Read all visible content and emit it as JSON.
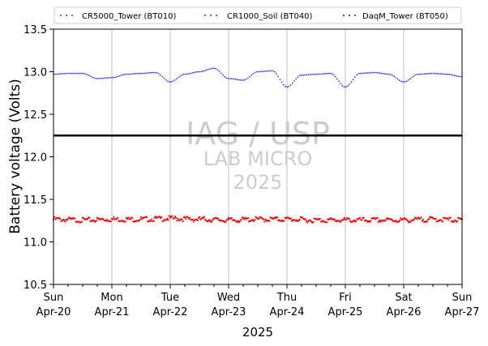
{
  "chart_data": {
    "type": "scatter",
    "title": "",
    "xlabel": "2025",
    "ylabel": "Battery voltage (Volts)",
    "x_ticks": [
      {
        "day": "Sun",
        "date": "Apr-20"
      },
      {
        "day": "Mon",
        "date": "Apr-21"
      },
      {
        "day": "Tue",
        "date": "Apr-22"
      },
      {
        "day": "Wed",
        "date": "Apr-23"
      },
      {
        "day": "Thu",
        "date": "Apr-24"
      },
      {
        "day": "Fri",
        "date": "Apr-25"
      },
      {
        "day": "Sat",
        "date": "Apr-26"
      },
      {
        "day": "Sun",
        "date": "Apr-27"
      }
    ],
    "xlim": [
      "2025-04-20",
      "2025-04-27"
    ],
    "ylim": [
      10.5,
      13.5
    ],
    "y_ticks": [
      "10.5",
      "11.0",
      "11.5",
      "12.0",
      "12.5",
      "13.0",
      "13.5"
    ],
    "grid": "vertical lines at day ticks",
    "legend_position": "top, above plot",
    "reference_line": {
      "y": 12.25,
      "color": "#000000"
    },
    "watermark": {
      "line1": "IAG / USP",
      "line2": "LAB MICRO",
      "line3": "2025"
    },
    "series": [
      {
        "name": "CR5000_Tower (BT010)",
        "color": "#3333ff",
        "marker": "dot",
        "x": [
          "2025-04-20T00:00",
          "2025-04-20T06:00",
          "2025-04-20T12:00",
          "2025-04-20T18:00",
          "2025-04-21T00:00",
          "2025-04-21T06:00",
          "2025-04-21T12:00",
          "2025-04-21T18:00",
          "2025-04-22T00:00",
          "2025-04-22T06:00",
          "2025-04-22T12:00",
          "2025-04-22T18:00",
          "2025-04-23T00:00",
          "2025-04-23T06:00",
          "2025-04-23T12:00",
          "2025-04-23T18:00",
          "2025-04-24T00:00",
          "2025-04-24T06:00",
          "2025-04-24T12:00",
          "2025-04-24T18:00",
          "2025-04-25T00:00",
          "2025-04-25T06:00",
          "2025-04-25T12:00",
          "2025-04-25T18:00",
          "2025-04-26T00:00",
          "2025-04-26T06:00",
          "2025-04-26T12:00",
          "2025-04-26T18:00",
          "2025-04-27T00:00"
        ],
        "y": [
          12.97,
          12.98,
          12.98,
          12.92,
          12.93,
          12.97,
          12.98,
          12.99,
          12.88,
          12.97,
          13.0,
          13.04,
          12.92,
          12.9,
          13.0,
          13.01,
          12.82,
          12.96,
          12.97,
          12.98,
          12.82,
          12.98,
          12.99,
          12.97,
          12.88,
          12.97,
          12.98,
          12.97,
          12.94
        ]
      },
      {
        "name": "CR1000_Soil (BT040)",
        "color": "#ff0000",
        "marker": "dot",
        "x": [
          "2025-04-20T00:00",
          "2025-04-20T12:00",
          "2025-04-21T00:00",
          "2025-04-21T12:00",
          "2025-04-22T00:00",
          "2025-04-22T12:00",
          "2025-04-23T00:00",
          "2025-04-23T12:00",
          "2025-04-24T00:00",
          "2025-04-24T12:00",
          "2025-04-25T00:00",
          "2025-04-25T12:00",
          "2025-04-26T00:00",
          "2025-04-26T12:00",
          "2025-04-27T00:00"
        ],
        "y": [
          11.28,
          11.27,
          11.28,
          11.28,
          11.29,
          11.28,
          11.27,
          11.28,
          11.28,
          11.27,
          11.27,
          11.27,
          11.27,
          11.28,
          11.27
        ]
      },
      {
        "name": "DaqM_Tower (BT050)",
        "color": "#000000",
        "marker": "dot",
        "x": [
          "2025-04-20T00:00",
          "2025-04-27T00:00"
        ],
        "y": [
          12.25,
          12.25
        ]
      }
    ]
  }
}
